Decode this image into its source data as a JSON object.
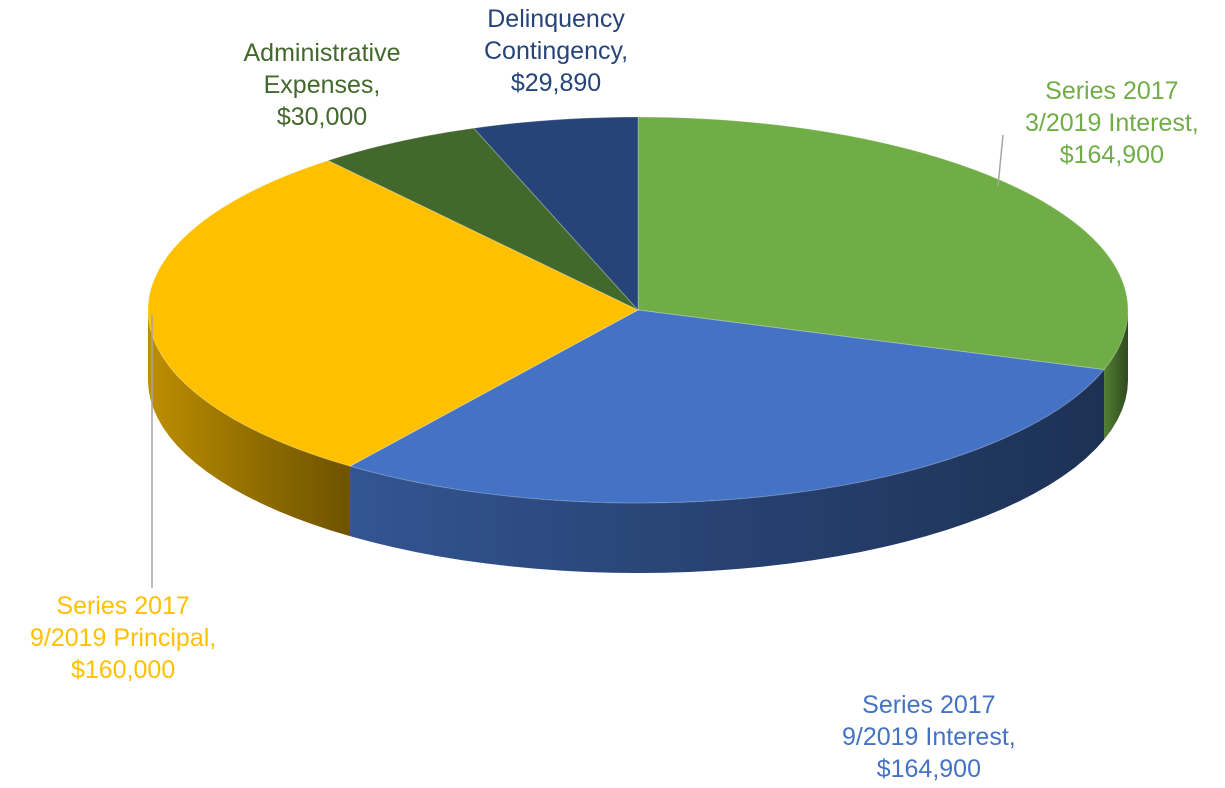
{
  "chart_data": {
    "type": "pie",
    "categories": [
      "Series 2017 3/2019 Interest",
      "Series 2017 9/2019 Interest",
      "Series 2017 9/2019 Principal",
      "Administrative Expenses",
      "Delinquency Contingency"
    ],
    "values": [
      164900,
      164900,
      160000,
      30000,
      29890
    ],
    "colors": [
      "#70AD47",
      "#4472C4",
      "#FFC000",
      "#43682B",
      "#264478"
    ],
    "labels": [
      {
        "lines": [
          "Series 2017",
          "3/2019 Interest,",
          "$164,900"
        ],
        "color": "#70AD47"
      },
      {
        "lines": [
          "Series 2017",
          "9/2019 Interest,",
          "$164,900"
        ],
        "color": "#4472C4"
      },
      {
        "lines": [
          "Series 2017",
          "9/2019 Principal,",
          "$160,000"
        ],
        "color": "#FFC000"
      },
      {
        "lines": [
          "Administrative",
          "Expenses,",
          "$30,000"
        ],
        "color": "#43682B"
      },
      {
        "lines": [
          "Delinquency",
          "Contingency,",
          "$29,890"
        ],
        "color": "#264478"
      }
    ],
    "style": "3d"
  }
}
